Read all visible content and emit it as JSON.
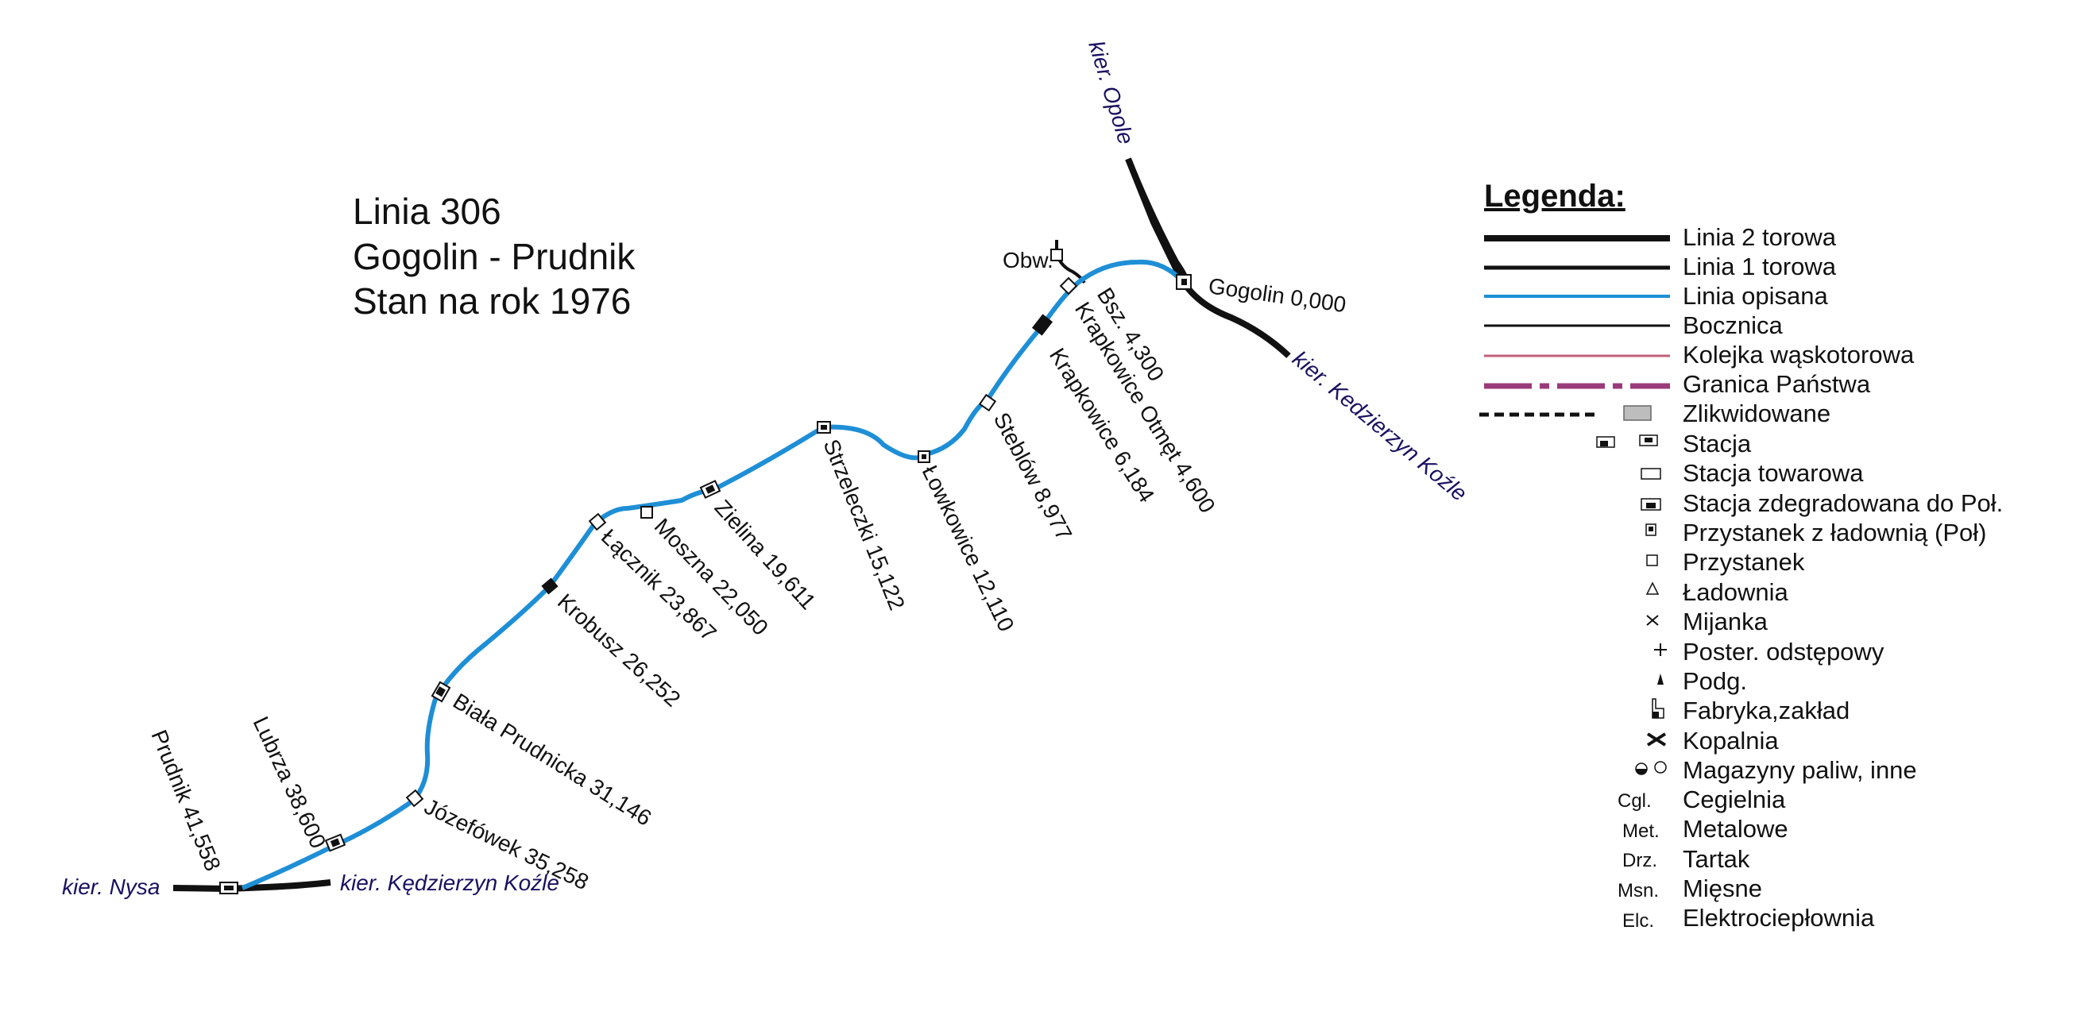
{
  "title": {
    "line1": "Linia 306",
    "line2": "Gogolin - Prudnik",
    "line3": "Stan na rok 1976"
  },
  "colors": {
    "described_line": "#1e8fd6",
    "track": "#111111",
    "narrow_gauge": "#c0607a",
    "border": "#9a3a7a",
    "direction_text": "#1a1060"
  },
  "stations": {
    "gogolin": "Gogolin 0,000",
    "bsz": "Bsz. 4,300",
    "krapkowice_otmet": "Krapkowice Otmęt 4,600",
    "krapkowice": "Krapkowice 6,184",
    "steblow": "Steblów 8,977",
    "lowkowice": "Łowkowice 12,110",
    "strzeleczki": "Strzeleczki 15,122",
    "zielina": "Zielina 19,611",
    "moszna": "Moszna 22,050",
    "lacznik": "Łącznik 23,867",
    "krobusz": "Krobusz 26,252",
    "biala_prudnicka": "Biała Prudnicka 31,146",
    "jozefowek": "Józefówek 35,258",
    "lubrza": "Lubrza 38,600",
    "prudnik": "Prudnik 41,558",
    "obw": "Obw."
  },
  "directions": {
    "opole": "kier. Opole",
    "kedzierzyn_ne": "kier. Kedzierzyn Koźle",
    "nysa": "kier. Nysa",
    "kedzierzyn_sw": "kier. Kędzierzyn Koźle"
  },
  "legend": {
    "heading": "Legenda:",
    "items": [
      "Linia 2 torowa",
      "Linia 1 torowa",
      "Linia opisana",
      "Bocznica",
      "Kolejka wąskotorowa",
      "Granica Państwa",
      "Zlikwidowane",
      "Stacja",
      "Stacja towarowa",
      "Stacja zdegradowana do Poł.",
      "Przystanek z ładownią (Poł)",
      "Przystanek",
      "Ładownia",
      "Mijanka",
      "Poster. odstępowy",
      "Podg.",
      "Fabryka,zakład",
      "Kopalnia",
      "Magazyny paliw, inne",
      "Cegielnia",
      "Metalowe",
      "Tartak",
      "Mięsne",
      "Elektrociepłownia"
    ],
    "abbreviations": [
      "Cgl.",
      "Met.",
      "Drz.",
      "Msn.",
      "Elc."
    ]
  }
}
